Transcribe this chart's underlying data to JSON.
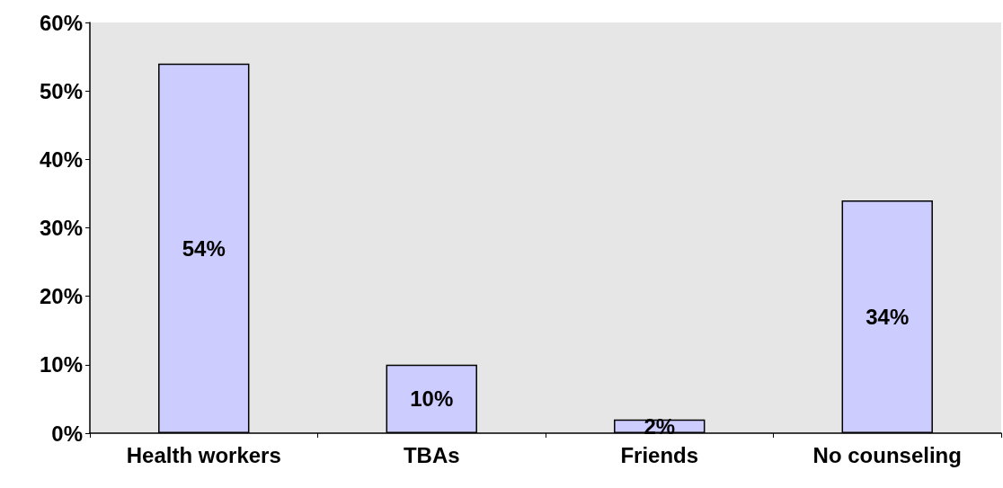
{
  "chart_data": {
    "type": "bar",
    "categories": [
      "Health workers",
      "TBAs",
      "Friends",
      "No counseling"
    ],
    "values": [
      54,
      10,
      2,
      34
    ],
    "value_labels": [
      "54%",
      "10%",
      "2%",
      "34%"
    ],
    "color": "#ccccff",
    "ylim": [
      0,
      60
    ],
    "yticks": [
      {
        "value": 0,
        "label": "0%"
      },
      {
        "value": 10,
        "label": "10%"
      },
      {
        "value": 20,
        "label": "20%"
      },
      {
        "value": 30,
        "label": "30%"
      },
      {
        "value": 40,
        "label": "40%"
      },
      {
        "value": 50,
        "label": "50%"
      },
      {
        "value": 60,
        "label": "60%"
      }
    ],
    "grid": false
  }
}
